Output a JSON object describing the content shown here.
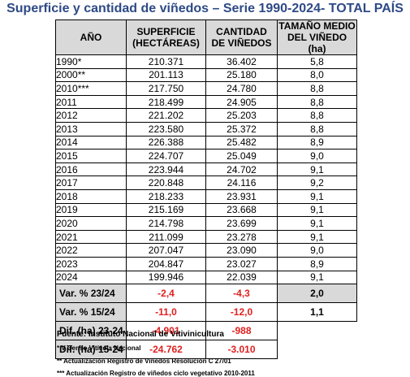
{
  "title": "Superficie y cantidad de viñedos – Serie 1990-2024- TOTAL PAÍS",
  "headers": {
    "year": "AÑO",
    "superficie_1": "SUPERFICIE",
    "superficie_2": "(HECTÁREAS)",
    "cantidad_1": "CANTIDAD",
    "cantidad_2": "DE VIÑEDOS",
    "tamano_1": "TAMAÑO MEDIO",
    "tamano_2": "DEL VIÑEDO (ha)"
  },
  "rows": [
    {
      "year": "1990*",
      "superficie": "210.371",
      "cantidad": "36.402",
      "tamano": "5,8"
    },
    {
      "year": "2000**",
      "superficie": "201.113",
      "cantidad": "25.180",
      "tamano": "8,0"
    },
    {
      "year": "2010***",
      "superficie": "217.750",
      "cantidad": "24.780",
      "tamano": "8,8"
    },
    {
      "year": "2011",
      "superficie": "218.499",
      "cantidad": "24.905",
      "tamano": "8,8"
    },
    {
      "year": "2012",
      "superficie": "221.202",
      "cantidad": "25.203",
      "tamano": "8,8"
    },
    {
      "year": "2013",
      "superficie": "223.580",
      "cantidad": "25.372",
      "tamano": "8,8"
    },
    {
      "year": "2014",
      "superficie": "226.388",
      "cantidad": "25.482",
      "tamano": "8,9"
    },
    {
      "year": "2015",
      "superficie": "224.707",
      "cantidad": "25.049",
      "tamano": "9,0"
    },
    {
      "year": "2016",
      "superficie": "223.944",
      "cantidad": "24.702",
      "tamano": "9,1"
    },
    {
      "year": "2017",
      "superficie": "220.848",
      "cantidad": "24.116",
      "tamano": "9,2"
    },
    {
      "year": "2018",
      "superficie": "218.233",
      "cantidad": "23.931",
      "tamano": "9,1"
    },
    {
      "year": "2019",
      "superficie": "215.169",
      "cantidad": "23.668",
      "tamano": "9,1"
    },
    {
      "year": "2020",
      "superficie": "214.798",
      "cantidad": "23.699",
      "tamano": "9,1"
    },
    {
      "year": "2021",
      "superficie": "211.099",
      "cantidad": "23.278",
      "tamano": "9,1"
    },
    {
      "year": "2022",
      "superficie": "207.047",
      "cantidad": "23.090",
      "tamano": "9,0"
    },
    {
      "year": "2023",
      "superficie": "204.847",
      "cantidad": "23.027",
      "tamano": "8,9"
    },
    {
      "year": "2024",
      "superficie": "199.946",
      "cantidad": "22.039",
      "tamano": "9,1"
    }
  ],
  "summary": [
    {
      "label": "Var. % 23/24",
      "superficie": "-2,4",
      "cantidad": "-4,3",
      "tamano": "2,0"
    },
    {
      "label": "Var. % 15/24",
      "superficie": "-11,0",
      "cantidad": "-12,0",
      "tamano": "1,1"
    },
    {
      "label": "Dif. (ha) 23-24",
      "superficie": "-4.901",
      "cantidad": "-988",
      "tamano": ""
    },
    {
      "label": "Dif. (ha) 15-24",
      "superficie": "-24.762",
      "cantidad": "-3.010",
      "tamano": ""
    }
  ],
  "footnotes": {
    "source": "Fuente: Instituto Nacional de Vitivinicultura",
    "note1": "* V Censo Vitícola Nacional",
    "note2": "** Actualización Registro de Viñedos Resolución C 27/01",
    "note3": "*** Actualización Registro de viñedos ciclo vegetativo 2010-2011"
  },
  "colors": {
    "title": "#2e4a86",
    "header_bg": "#d9d9d9",
    "negative": "#e02020"
  }
}
